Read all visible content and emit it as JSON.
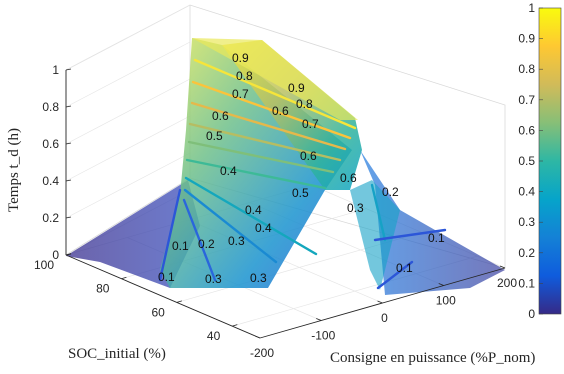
{
  "chart_data": {
    "type": "surface3d",
    "title": "",
    "zlabel": "Temps t_d (h)",
    "xlabel": "Consigne en puissance (%P_nom)",
    "ylabel": "SOC_initial (%)",
    "x_ticks": [
      "-200",
      "-100",
      "0",
      "100",
      "200"
    ],
    "y_ticks": [
      "100",
      "80",
      "60",
      "40"
    ],
    "z_ticks": [
      "0",
      "0.2",
      "0.4",
      "0.6",
      "0.8",
      "1"
    ],
    "xlim": [
      -200,
      200
    ],
    "ylim": [
      30,
      100
    ],
    "zlim": [
      0,
      1
    ],
    "colorbar": {
      "ticks": [
        "0",
        "0.1",
        "0.2",
        "0.3",
        "0.4",
        "0.5",
        "0.6",
        "0.7",
        "0.8",
        "0.9",
        "1"
      ],
      "colormap": "parula",
      "stops": [
        "#352a87",
        "#0f5cdd",
        "#1481d6",
        "#06a4ca",
        "#2eb7a4",
        "#87bf77",
        "#d1bb59",
        "#fec832",
        "#f9fb0e"
      ]
    },
    "contour_labels": [
      "0.9",
      "0.8",
      "0.7",
      "0.6",
      "0.5",
      "0.4",
      "0.3",
      "0.2",
      "0.1",
      "0.9",
      "0.8",
      "0.7",
      "0.6",
      "0.5",
      "0.4",
      "0.3",
      "0.2",
      "0.1"
    ],
    "grid": true
  }
}
